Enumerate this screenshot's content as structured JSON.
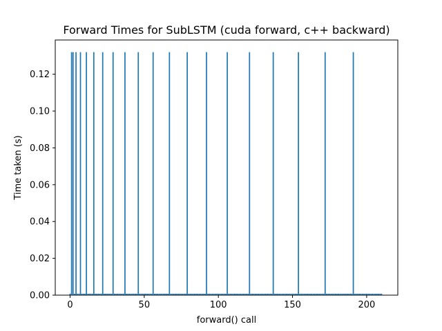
{
  "chart_data": {
    "type": "bar",
    "title": "Forward Times for SubLSTM (cuda forward, c++ backward)",
    "xlabel": "forward() call",
    "ylabel": "Time taken (s)",
    "xlim": [
      -10,
      221
    ],
    "ylim": [
      0,
      0.1386
    ],
    "xticks": [
      0,
      50,
      100,
      150,
      200
    ],
    "yticks": [
      0.0,
      0.02,
      0.04,
      0.06,
      0.08,
      0.1,
      0.12
    ],
    "xtick_labels": [
      "0",
      "50",
      "100",
      "150",
      "200"
    ],
    "ytick_labels": [
      "0.00",
      "0.02",
      "0.04",
      "0.06",
      "0.08",
      "0.10",
      "0.12"
    ],
    "grid": false,
    "bar_color": "#1f77b4",
    "num_calls": 211,
    "baseline_value": 0.0008,
    "spikes": [
      {
        "x": 1,
        "value": 0.132
      },
      {
        "x": 2,
        "value": 0.132
      },
      {
        "x": 4,
        "value": 0.132
      },
      {
        "x": 7,
        "value": 0.132
      },
      {
        "x": 11,
        "value": 0.132
      },
      {
        "x": 16,
        "value": 0.132
      },
      {
        "x": 22,
        "value": 0.132
      },
      {
        "x": 29,
        "value": 0.132
      },
      {
        "x": 37,
        "value": 0.132
      },
      {
        "x": 46,
        "value": 0.132
      },
      {
        "x": 56,
        "value": 0.132
      },
      {
        "x": 67,
        "value": 0.132
      },
      {
        "x": 79,
        "value": 0.132
      },
      {
        "x": 92,
        "value": 0.132
      },
      {
        "x": 106,
        "value": 0.132
      },
      {
        "x": 121,
        "value": 0.132
      },
      {
        "x": 137,
        "value": 0.132
      },
      {
        "x": 154,
        "value": 0.132
      },
      {
        "x": 172,
        "value": 0.132
      },
      {
        "x": 191,
        "value": 0.132
      }
    ]
  }
}
